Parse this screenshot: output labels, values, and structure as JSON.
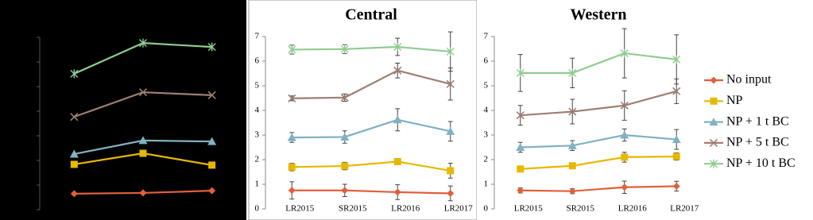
{
  "chart_data": [
    {
      "type": "line",
      "background": "#000000",
      "tick_labels": false,
      "categories": [
        null,
        null,
        null
      ],
      "ylim": [
        0,
        7
      ],
      "yticks": [
        0,
        1,
        2,
        3,
        4,
        5,
        6,
        7
      ],
      "series": [
        {
          "values": [
            0.65,
            0.68,
            0.77
          ]
        },
        {
          "values": [
            1.84,
            2.29,
            1.81
          ]
        },
        {
          "values": [
            2.26,
            2.81,
            2.77
          ]
        },
        {
          "values": [
            3.77,
            4.77,
            4.65
          ]
        },
        {
          "values": [
            5.52,
            6.77,
            6.61
          ]
        }
      ]
    },
    {
      "type": "line",
      "background": "#ffffff",
      "tick_labels": true,
      "title": "Central",
      "categories": [
        "LR2015",
        "SR2015",
        "LR2016",
        "LR2017"
      ],
      "ylim": [
        0,
        7
      ],
      "yticks": [
        0,
        1,
        2,
        3,
        4,
        5,
        6,
        7
      ],
      "series": [
        {
          "values": [
            0.75,
            0.75,
            0.68,
            0.63
          ],
          "errors": [
            0.35,
            0.25,
            0.3,
            0.3
          ]
        },
        {
          "values": [
            1.7,
            1.74,
            1.92,
            1.55
          ],
          "errors": [
            0.15,
            0.15,
            0.12,
            0.3
          ]
        },
        {
          "values": [
            2.9,
            2.92,
            3.62,
            3.15
          ],
          "errors": [
            0.2,
            0.25,
            0.45,
            0.4
          ]
        },
        {
          "values": [
            4.49,
            4.52,
            5.62,
            5.07
          ],
          "errors": [
            0.1,
            0.15,
            0.3,
            0.65
          ]
        },
        {
          "values": [
            6.47,
            6.49,
            6.58,
            6.39
          ],
          "errors": [
            0.18,
            0.18,
            0.35,
            0.8
          ]
        }
      ]
    },
    {
      "type": "line",
      "background": "#ffffff",
      "tick_labels": true,
      "title": "Western",
      "categories": [
        "LR2015",
        "SR2015",
        "LR2016",
        "LR2017"
      ],
      "ylim": [
        0,
        7
      ],
      "yticks": [
        0,
        1,
        2,
        3,
        4,
        5,
        6,
        7
      ],
      "series": [
        {
          "values": [
            0.75,
            0.72,
            0.88,
            0.92
          ],
          "errors": [
            0.1,
            0.1,
            0.25,
            0.2
          ]
        },
        {
          "values": [
            1.62,
            1.75,
            2.1,
            2.13
          ],
          "errors": [
            0.1,
            0.1,
            0.2,
            0.15
          ]
        },
        {
          "values": [
            2.5,
            2.57,
            3.0,
            2.82
          ],
          "errors": [
            0.2,
            0.2,
            0.25,
            0.4
          ]
        },
        {
          "values": [
            3.8,
            3.95,
            4.2,
            4.78
          ],
          "errors": [
            0.4,
            0.5,
            0.6,
            0.5
          ]
        },
        {
          "values": [
            5.52,
            5.52,
            6.32,
            6.07
          ],
          "errors": [
            0.75,
            0.6,
            1.0,
            1.0
          ]
        }
      ]
    }
  ],
  "legend": [
    {
      "name": "No input",
      "color": "#e0603a",
      "marker": "diamond"
    },
    {
      "name": "NP",
      "color": "#e6b800",
      "marker": "square"
    },
    {
      "name": "NP + 1 t BC",
      "color": "#7fb2c2",
      "marker": "triangle"
    },
    {
      "name": "NP + 5 t BC",
      "color": "#9e7e72",
      "marker": "cross"
    },
    {
      "name": "NP + 10 t BC",
      "color": "#8fcc90",
      "marker": "star"
    }
  ]
}
